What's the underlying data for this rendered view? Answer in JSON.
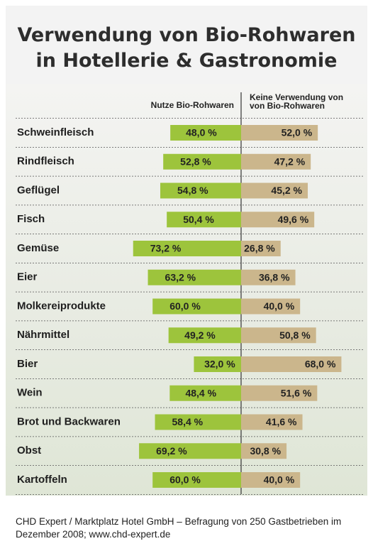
{
  "chart_data": {
    "type": "diverging-bar",
    "title": [
      "Verwendung von Bio-Rohwaren",
      "in Hotellerie & Gastronomie"
    ],
    "categories": [
      "Schweinfleisch",
      "Rindfleisch",
      "Geflügel",
      "Fisch",
      "Gemüse",
      "Eier",
      "Molkereiprodukte",
      "Nährmittel",
      "Bier",
      "Wein",
      "Brot und Backwaren",
      "Obst",
      "Kartoffeln"
    ],
    "series": [
      {
        "name": [
          "Nutze Bio-Rohwaren"
        ],
        "color": "#9dc43c",
        "values": [
          48.0,
          52.8,
          54.8,
          50.4,
          73.2,
          63.2,
          60.0,
          49.2,
          32.0,
          48.4,
          58.4,
          69.2,
          60.0
        ],
        "value_labels": [
          "48,0 %",
          "52,8 %",
          "54,8 %",
          "50,4 %",
          "73,2 %",
          "63,2 %",
          "60,0 %",
          "49,2 %",
          "32,0 %",
          "48,4 %",
          "58,4 %",
          "69,2 %",
          "60,0 %"
        ]
      },
      {
        "name": [
          "Keine Verwendung von",
          "von Bio-Rohwaren"
        ],
        "color": "#cbb68c",
        "values": [
          52.0,
          47.2,
          45.2,
          49.6,
          26.8,
          36.8,
          40.0,
          50.8,
          68.0,
          51.6,
          41.6,
          30.8,
          40.0
        ],
        "value_labels": [
          "52,0 %",
          "47,2 %",
          "45,2 %",
          "49,6 %",
          "26,8 %",
          "36,8 %",
          "40,0 %",
          "50,8 %",
          "68,0 %",
          "51,6 %",
          "41,6 %",
          "30,8 %",
          "40,0 %"
        ]
      }
    ],
    "source": "CHD Expert / Marktplatz Hotel GmbH – Befragung von 250 Gastbetrieben im Dezember 2008; www.chd-expert.de"
  }
}
